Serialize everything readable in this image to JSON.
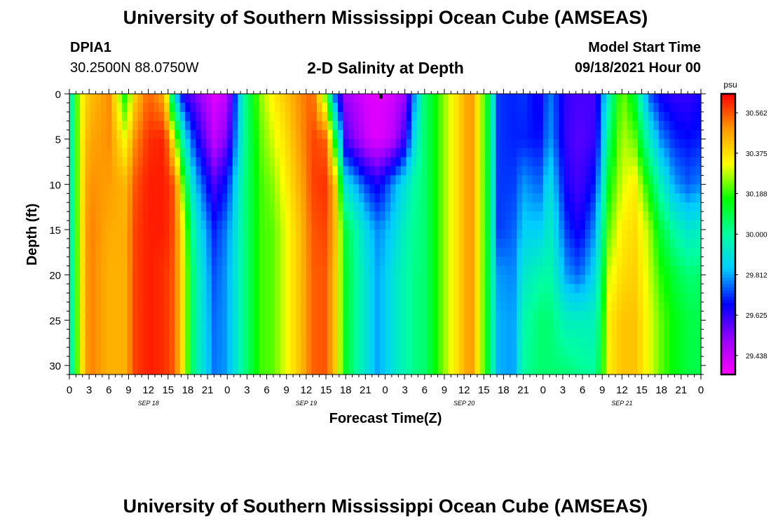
{
  "header": {
    "title": "University of Southern Mississippi Ocean Cube (AMSEAS)",
    "footer_title": "University of Southern Mississippi Ocean Cube (AMSEAS)",
    "station_id": "DPIA1",
    "coords": "30.2500N  88.0750W",
    "model_start_label": "Model Start Time",
    "model_start_value": "09/18/2021 Hour 00"
  },
  "chart_data": {
    "type": "heatmap",
    "title": "2-D Salinity at Depth",
    "xlabel": "Forecast Time(Z)",
    "ylabel": "Depth (ft)",
    "units": "psu",
    "x_range_hours": [
      0,
      96
    ],
    "ylim": [
      0,
      31
    ],
    "y_ticks": [
      0,
      5,
      10,
      15,
      20,
      25,
      30
    ],
    "x_tick_labels": [
      "0",
      "3",
      "6",
      "9",
      "12",
      "15",
      "18",
      "21",
      "0",
      "3",
      "6",
      "9",
      "12",
      "15",
      "18",
      "21",
      "0",
      "3",
      "6",
      "9",
      "12",
      "15",
      "18",
      "21",
      "0",
      "3",
      "6",
      "9",
      "12",
      "15",
      "18",
      "21",
      "0"
    ],
    "day_labels": [
      {
        "hour": 12,
        "label": "SEP 18"
      },
      {
        "hour": 36,
        "label": "SEP 19"
      },
      {
        "hour": 60,
        "label": "SEP 20"
      },
      {
        "hour": 84,
        "label": "SEP 21"
      }
    ],
    "colorbar": {
      "min": 29.35,
      "max": 30.65,
      "tick_values": [
        30.562,
        30.375,
        30.188,
        30.0,
        29.812,
        29.625,
        29.438
      ],
      "tick_labels": [
        "30.562",
        "30.375",
        "30.188",
        "30.000",
        "29.812",
        "29.625",
        "29.438"
      ],
      "colors": [
        "#ff00ff",
        "#9900ff",
        "#0000ff",
        "#00ccff",
        "#00ffa0",
        "#00ff00",
        "#ffff00",
        "#ff9900",
        "#ff0000"
      ]
    },
    "depth_samples_ft": [
      0,
      5,
      10,
      15,
      20,
      25,
      31
    ],
    "salinity_columns": [
      {
        "hour": 0.0,
        "values": [
          29.9,
          29.9,
          29.9,
          29.9,
          29.9,
          29.9,
          29.9
        ]
      },
      {
        "hour": 1.5,
        "values": [
          30.3,
          30.3,
          30.3,
          30.3,
          30.3,
          30.3,
          30.3
        ]
      },
      {
        "hour": 3.0,
        "values": [
          30.42,
          30.46,
          30.5,
          30.52,
          30.52,
          30.52,
          30.52
        ]
      },
      {
        "hour": 6.0,
        "values": [
          30.5,
          30.5,
          30.48,
          30.46,
          30.45,
          30.45,
          30.45
        ]
      },
      {
        "hour": 8.5,
        "values": [
          30.15,
          30.32,
          30.44,
          30.45,
          30.45,
          30.45,
          30.45
        ]
      },
      {
        "hour": 10.0,
        "values": [
          30.4,
          30.5,
          30.56,
          30.58,
          30.58,
          30.58,
          30.58
        ]
      },
      {
        "hour": 12.0,
        "values": [
          30.55,
          30.6,
          30.62,
          30.62,
          30.62,
          30.62,
          30.62
        ]
      },
      {
        "hour": 14.5,
        "values": [
          30.45,
          30.62,
          30.62,
          30.62,
          30.6,
          30.6,
          30.6
        ]
      },
      {
        "hour": 16.0,
        "values": [
          29.85,
          30.3,
          30.56,
          30.56,
          30.55,
          30.55,
          30.55
        ]
      },
      {
        "hour": 17.5,
        "values": [
          29.62,
          29.9,
          30.15,
          30.3,
          30.32,
          30.32,
          30.32
        ]
      },
      {
        "hour": 19.0,
        "values": [
          29.55,
          29.7,
          29.85,
          29.95,
          30.0,
          30.0,
          30.0
        ]
      },
      {
        "hour": 22.0,
        "values": [
          29.4,
          29.45,
          29.6,
          29.7,
          29.74,
          29.76,
          29.77
        ]
      },
      {
        "hour": 24.0,
        "values": [
          29.45,
          29.55,
          29.7,
          29.78,
          29.8,
          29.8,
          29.8
        ]
      },
      {
        "hour": 26.5,
        "values": [
          30.0,
          30.0,
          30.02,
          30.02,
          30.02,
          30.02,
          30.02
        ]
      },
      {
        "hour": 29.0,
        "values": [
          30.25,
          30.22,
          30.2,
          30.2,
          30.2,
          30.2,
          30.2
        ]
      },
      {
        "hour": 31.0,
        "values": [
          30.35,
          30.3,
          30.25,
          30.22,
          30.22,
          30.22,
          30.22
        ]
      },
      {
        "hour": 33.0,
        "values": [
          30.42,
          30.38,
          30.35,
          30.32,
          30.32,
          30.32,
          30.32
        ]
      },
      {
        "hour": 35.0,
        "values": [
          30.5,
          30.48,
          30.45,
          30.42,
          30.42,
          30.42,
          30.42
        ]
      },
      {
        "hour": 37.0,
        "values": [
          30.55,
          30.58,
          30.58,
          30.56,
          30.55,
          30.55,
          30.55
        ]
      },
      {
        "hour": 39.0,
        "values": [
          30.2,
          30.55,
          30.6,
          30.58,
          30.56,
          30.56,
          30.56
        ]
      },
      {
        "hour": 40.5,
        "values": [
          29.7,
          30.1,
          30.4,
          30.42,
          30.4,
          30.4,
          30.4
        ]
      },
      {
        "hour": 42.0,
        "values": [
          29.5,
          29.6,
          29.9,
          30.1,
          30.12,
          30.12,
          30.12
        ]
      },
      {
        "hour": 45.5,
        "values": [
          29.4,
          29.42,
          29.7,
          29.85,
          29.88,
          29.88,
          29.88
        ]
      },
      {
        "hour": 47.0,
        "values": [
          29.4,
          29.4,
          29.65,
          29.78,
          29.8,
          29.8,
          29.8
        ]
      },
      {
        "hour": 49.0,
        "values": [
          29.42,
          29.45,
          29.78,
          29.85,
          29.9,
          29.9,
          29.9
        ]
      },
      {
        "hour": 51.0,
        "values": [
          29.5,
          29.62,
          29.9,
          29.96,
          29.98,
          29.98,
          29.98
        ]
      },
      {
        "hour": 52.5,
        "values": [
          29.8,
          29.9,
          30.0,
          30.02,
          30.03,
          30.03,
          30.03
        ]
      },
      {
        "hour": 54.0,
        "values": [
          30.05,
          30.05,
          30.05,
          30.05,
          30.05,
          30.05,
          30.05
        ]
      },
      {
        "hour": 56.5,
        "values": [
          30.22,
          30.22,
          30.22,
          30.22,
          30.22,
          30.22,
          30.22
        ]
      },
      {
        "hour": 59.0,
        "values": [
          30.38,
          30.38,
          30.38,
          30.38,
          30.38,
          30.38,
          30.38
        ]
      },
      {
        "hour": 61.0,
        "values": [
          30.5,
          30.5,
          30.5,
          30.5,
          30.5,
          30.5,
          30.5
        ]
      },
      {
        "hour": 62.5,
        "values": [
          30.3,
          30.3,
          30.3,
          30.3,
          30.3,
          30.3,
          30.3
        ]
      },
      {
        "hour": 64.0,
        "values": [
          30.05,
          30.05,
          30.05,
          30.05,
          30.05,
          30.05,
          30.05
        ]
      },
      {
        "hour": 65.0,
        "values": [
          29.72,
          29.72,
          29.72,
          29.72,
          29.8,
          29.82,
          29.82
        ]
      },
      {
        "hour": 67.5,
        "values": [
          29.7,
          29.7,
          29.72,
          29.75,
          29.78,
          29.8,
          29.8
        ]
      },
      {
        "hour": 69.0,
        "values": [
          29.72,
          29.7,
          29.8,
          29.85,
          29.92,
          29.98,
          30.0
        ]
      },
      {
        "hour": 71.5,
        "values": [
          29.65,
          29.68,
          29.75,
          29.85,
          29.98,
          30.05,
          30.05
        ]
      },
      {
        "hour": 73.0,
        "values": [
          29.78,
          29.8,
          29.9,
          29.95,
          30.0,
          30.05,
          30.05
        ]
      },
      {
        "hour": 75.5,
        "values": [
          29.62,
          29.62,
          29.65,
          29.72,
          29.8,
          29.95,
          30.05
        ]
      },
      {
        "hour": 77.5,
        "values": [
          29.6,
          29.58,
          29.6,
          29.65,
          29.75,
          29.95,
          30.02
        ]
      },
      {
        "hour": 80.0,
        "values": [
          29.6,
          29.62,
          29.7,
          29.8,
          29.88,
          29.95,
          30.0
        ]
      },
      {
        "hour": 82.0,
        "values": [
          29.95,
          30.05,
          30.15,
          30.22,
          30.3,
          30.35,
          30.35
        ]
      },
      {
        "hour": 84.0,
        "values": [
          30.25,
          30.28,
          30.3,
          30.35,
          30.38,
          30.42,
          30.42
        ]
      },
      {
        "hour": 86.0,
        "values": [
          30.1,
          30.22,
          30.35,
          30.38,
          30.4,
          30.42,
          30.42
        ]
      },
      {
        "hour": 88.0,
        "values": [
          29.75,
          29.95,
          30.15,
          30.28,
          30.3,
          30.32,
          30.32
        ]
      },
      {
        "hour": 90.0,
        "values": [
          29.65,
          29.78,
          29.95,
          30.1,
          30.18,
          30.22,
          30.22
        ]
      },
      {
        "hour": 92.0,
        "values": [
          29.62,
          29.7,
          29.8,
          29.98,
          30.1,
          30.15,
          30.15
        ]
      },
      {
        "hour": 94.0,
        "values": [
          29.62,
          29.68,
          29.75,
          29.92,
          30.05,
          30.1,
          30.1
        ]
      },
      {
        "hour": 96.0,
        "values": [
          29.65,
          29.7,
          29.78,
          29.95,
          30.05,
          30.08,
          30.08
        ]
      }
    ]
  }
}
